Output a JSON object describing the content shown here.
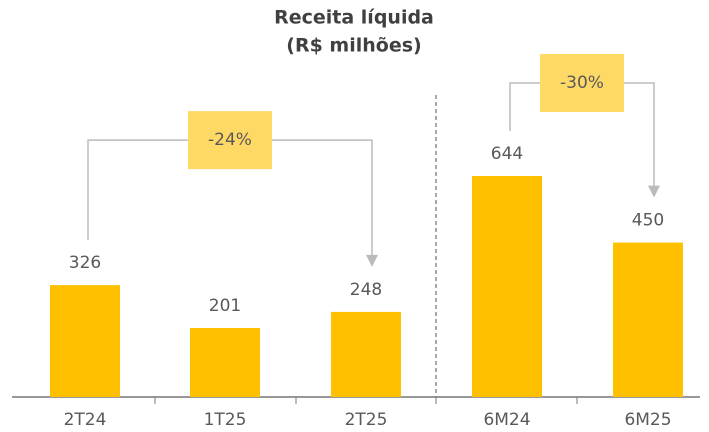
{
  "chart_data": {
    "type": "bar",
    "title": "Receita líquida",
    "subtitle": "(R$ milhões)",
    "categories": [
      "2T24",
      "1T25",
      "2T25",
      "6M24",
      "6M25"
    ],
    "values": [
      326,
      201,
      248,
      644,
      450
    ],
    "color": "#ffc000",
    "annotations": [
      {
        "text": "-24%",
        "from": "2T24",
        "to": "2T25"
      },
      {
        "text": "-30%",
        "from": "6M24",
        "to": "6M25"
      }
    ]
  }
}
